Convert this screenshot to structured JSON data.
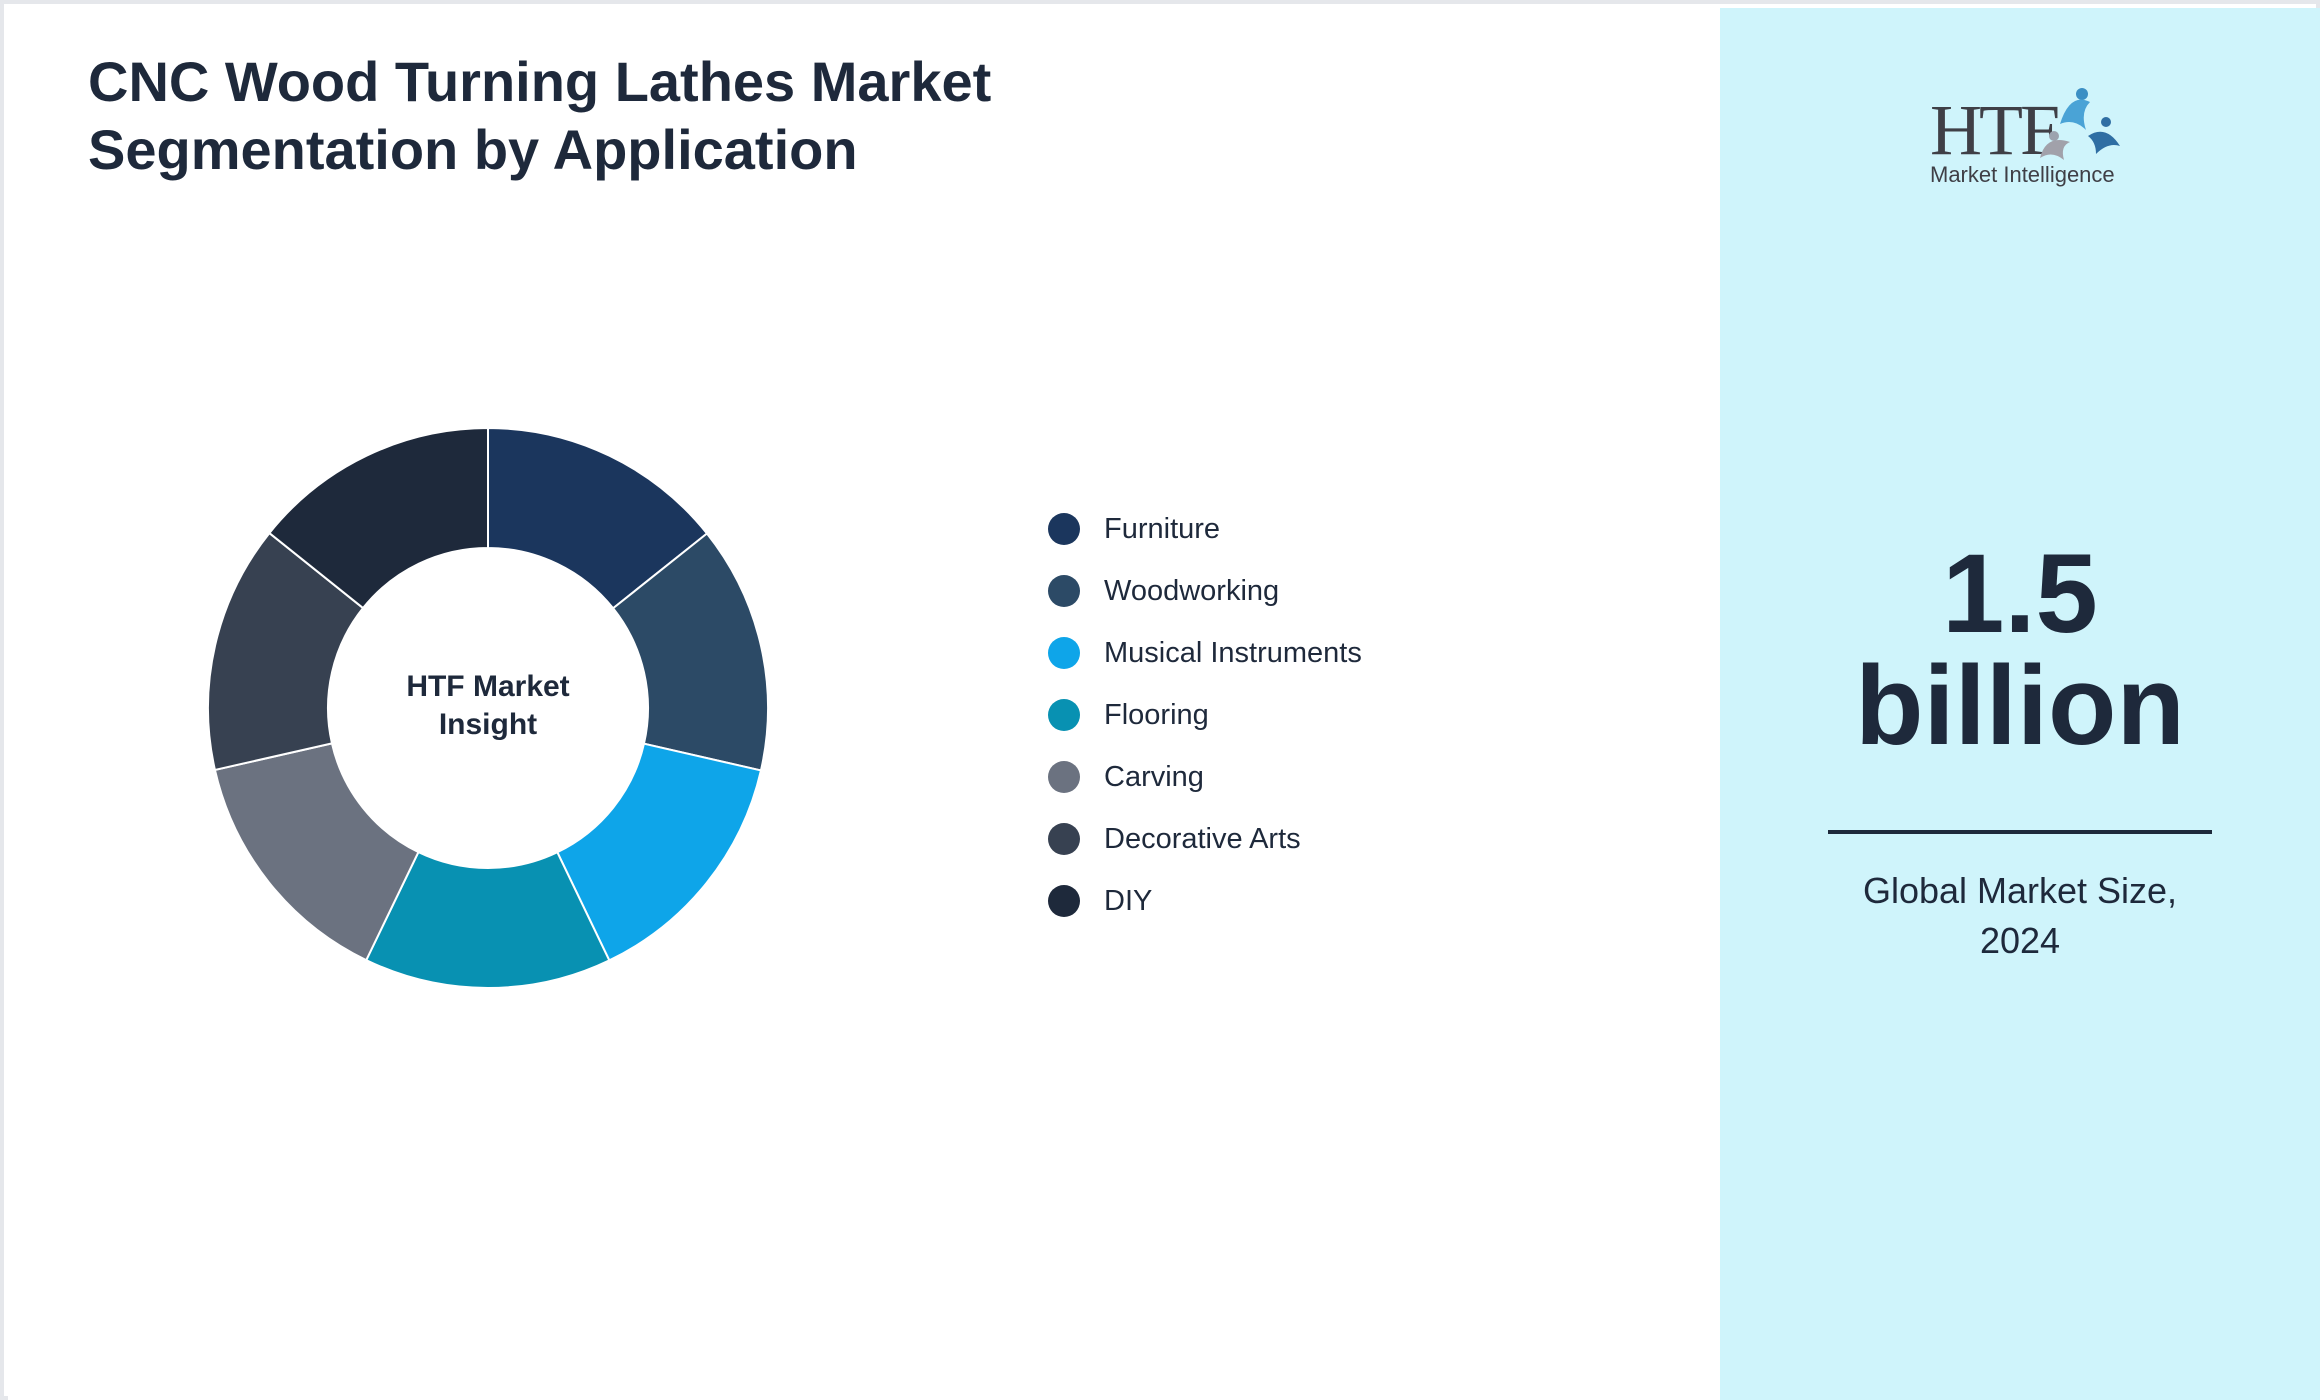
{
  "title_line1": "CNC Wood Turning Lathes Market",
  "title_line2": "Segmentation by Application",
  "center_label_line1": "HTF Market",
  "center_label_line2": "Insight",
  "chart_data": {
    "type": "pie",
    "title": "CNC Wood Turning Lathes Market Segmentation by Application",
    "donut": true,
    "categories": [
      "Furniture",
      "Woodworking",
      "Musical Instruments",
      "Flooring",
      "Carving",
      "Decorative Arts",
      "DIY"
    ],
    "values": [
      14.29,
      14.29,
      14.29,
      14.29,
      14.29,
      14.29,
      14.26
    ],
    "colors": [
      "#1b365d",
      "#2c4a66",
      "#0ea5e9",
      "#0891b2",
      "#6b7280",
      "#374151",
      "#1e293b"
    ],
    "legend_position": "right"
  },
  "logo": {
    "text": "HTF",
    "subtext": "Market Intelligence"
  },
  "market_size": {
    "value_line1": "1.5",
    "value_line2": "billion",
    "caption_line1": "Global Market Size,",
    "caption_line2": "2024"
  }
}
